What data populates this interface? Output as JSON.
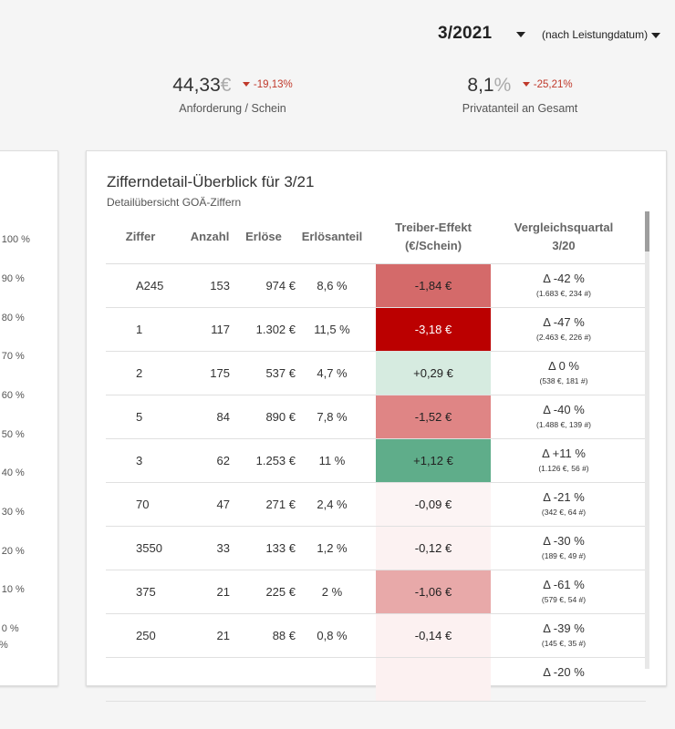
{
  "header": {
    "period": "3/2021",
    "mode": "(nach Leistungdatum)"
  },
  "kpis": [
    {
      "value": "44,33",
      "unit": "€",
      "delta": "-19,13%",
      "label": "Anforderung / Schein"
    },
    {
      "value": "8,1",
      "unit": "%",
      "delta": "-25,21%",
      "label": "Privatanteil an Gesamt"
    }
  ],
  "left_axis": [
    "- 100 %",
    "- 90 %",
    "- 80 %",
    "- 70 %",
    "- 60 %",
    "- 50 %",
    "- 40 %",
    "- 30 %",
    "- 20 %",
    "- 10 %",
    "- 0 %",
    "%"
  ],
  "card": {
    "title": "Zifferndetail-Überblick für 3/21",
    "subtitle": "Detailübersicht GOÄ-Ziffern",
    "columns": {
      "ziffer": "Ziffer",
      "anzahl": "Anzahl",
      "erloese": "Erlöse",
      "anteil": "Erlösanteil",
      "treiber_1": "Treiber-Effekt",
      "treiber_2": "(€/Schein)",
      "vergleich_1": "Vergleichsquartal",
      "vergleich_2": "3/20"
    },
    "rows": [
      {
        "ziffer": "A245",
        "anzahl": "153",
        "erloese": "974 €",
        "anteil": "8,6 %",
        "treiber": "-1,84 €",
        "treiber_color": "#d46a6a",
        "treiber_text": "#222",
        "vergleich": "Δ -42 %",
        "detail": "(1.683 €, 234 #)"
      },
      {
        "ziffer": "1",
        "anzahl": "117",
        "erloese": "1.302 €",
        "anteil": "11,5 %",
        "treiber": "-3,18 €",
        "treiber_color": "#bb0000",
        "treiber_text": "#ffffff",
        "vergleich": "Δ -47 %",
        "detail": "(2.463 €, 226 #)"
      },
      {
        "ziffer": "2",
        "anzahl": "175",
        "erloese": "537 €",
        "anteil": "4,7 %",
        "treiber": "+0,29 €",
        "treiber_color": "#d6ebe0",
        "treiber_text": "#222",
        "vergleich": "Δ 0 %",
        "detail": "(538 €, 181 #)"
      },
      {
        "ziffer": "5",
        "anzahl": "84",
        "erloese": "890 €",
        "anteil": "7,8 %",
        "treiber": "-1,52 €",
        "treiber_color": "#df8585",
        "treiber_text": "#222",
        "vergleich": "Δ -40 %",
        "detail": "(1.488 €, 139 #)"
      },
      {
        "ziffer": "3",
        "anzahl": "62",
        "erloese": "1.253 €",
        "anteil": "11 %",
        "treiber": "+1,12 €",
        "treiber_color": "#5fad8a",
        "treiber_text": "#222",
        "vergleich": "Δ +11 %",
        "detail": "(1.126 €, 56 #)"
      },
      {
        "ziffer": "70",
        "anzahl": "47",
        "erloese": "271 €",
        "anteil": "2,4 %",
        "treiber": "-0,09 €",
        "treiber_color": "#fcf4f4",
        "treiber_text": "#222",
        "vergleich": "Δ -21 %",
        "detail": "(342 €, 64 #)"
      },
      {
        "ziffer": "3550",
        "anzahl": "33",
        "erloese": "133 €",
        "anteil": "1,2 %",
        "treiber": "-0,12 €",
        "treiber_color": "#fcf2f2",
        "treiber_text": "#222",
        "vergleich": "Δ -30 %",
        "detail": "(189 €, 49 #)"
      },
      {
        "ziffer": "375",
        "anzahl": "21",
        "erloese": "225 €",
        "anteil": "2 %",
        "treiber": "-1,06 €",
        "treiber_color": "#e8a9a9",
        "treiber_text": "#222",
        "vergleich": "Δ -61 %",
        "detail": "(579 €, 54 #)"
      },
      {
        "ziffer": "250",
        "anzahl": "21",
        "erloese": "88 €",
        "anteil": "0,8 %",
        "treiber": "-0,14 €",
        "treiber_color": "#fcf1f1",
        "treiber_text": "#222",
        "vergleich": "Δ -39 %",
        "detail": "(145 €, 35 #)"
      },
      {
        "ziffer": "",
        "anzahl": "",
        "erloese": "",
        "anteil": "",
        "treiber": "",
        "treiber_color": "#fcf1f1",
        "treiber_text": "#222",
        "vergleich": "Δ -20 %",
        "detail": ""
      }
    ]
  }
}
